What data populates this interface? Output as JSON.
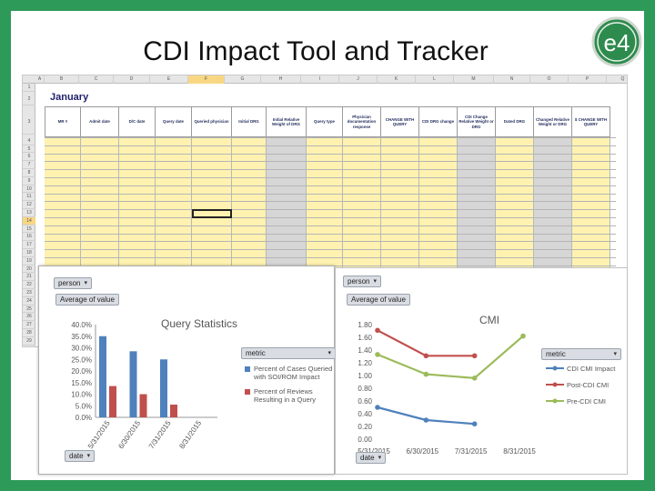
{
  "slide": {
    "title": "CDI Impact Tool and Tracker",
    "logo_text": "e4",
    "colors": {
      "frame": "#2e9a5a",
      "logo": "#2e8b4e",
      "band": "#fff2b0",
      "gray_col": "#d6d6d6",
      "selection": "#f8d783"
    }
  },
  "sheet": {
    "column_letters": [
      "A",
      "B",
      "C",
      "D",
      "E",
      "F",
      "G",
      "H",
      "I",
      "J",
      "K",
      "L",
      "M",
      "N",
      "O",
      "P",
      "Q"
    ],
    "selected_column": "F",
    "month": "January",
    "headers": [
      "MR #",
      "Admit date",
      "D/C date",
      "Query date",
      "Queried physician",
      "Initial DRG",
      "Initial Relative Weight of DRG",
      "Query type",
      "Physician documentation response",
      "CHANGE WITH QUERY",
      "CDI DRG change",
      "CDI Change Relative Weight or DRG",
      "Dated DRG",
      "Changed Relative Weight or DRG",
      "$ CHANGE WITH QUERY"
    ],
    "row_numbers": [
      "1",
      "2",
      "3",
      "4",
      "5",
      "6",
      "7",
      "8",
      "9",
      "10",
      "11",
      "12",
      "13",
      "14",
      "15",
      "16",
      "17",
      "18",
      "19",
      "20",
      "21",
      "22",
      "23",
      "24",
      "25",
      "26",
      "27",
      "28",
      "29"
    ],
    "selected_row": "14"
  },
  "pivot1": {
    "filter_label": "person",
    "value_label": "Average of value",
    "legend_field": "metric",
    "axis_field": "date",
    "icon": "filter-dropdown-icon"
  },
  "pivot2": {
    "filter_label": "person",
    "value_label": "Average of value",
    "legend_field": "metric",
    "axis_field": "date",
    "icon": "filter-dropdown-icon"
  },
  "chart_data": [
    {
      "type": "bar",
      "title": "Query Statistics",
      "categories": [
        "5/31/2015",
        "6/30/2015",
        "7/31/2015",
        "8/31/2015"
      ],
      "ylim": [
        0,
        40
      ],
      "yticks": [
        "0.0%",
        "5.0%",
        "10.0%",
        "15.0%",
        "20.0%",
        "25.0%",
        "30.0%",
        "35.0%",
        "40.0%"
      ],
      "legend_placement": "right",
      "series": [
        {
          "name": "Percent of Cases Queried with SOI/ROM Impact",
          "values": [
            35,
            28.5,
            25,
            null
          ],
          "color": "#4f81bd"
        },
        {
          "name": "Percent of Reviews Resulting in a Query",
          "values": [
            13.5,
            10,
            5.5,
            null
          ],
          "color": "#c0504d"
        }
      ]
    },
    {
      "type": "line",
      "title": "CMI",
      "categories": [
        "5/31/2015",
        "6/30/2015",
        "7/31/2015",
        "8/31/2015"
      ],
      "ylim": [
        0,
        1.8
      ],
      "yticks": [
        "0.00",
        "0.20",
        "0.40",
        "0.60",
        "0.80",
        "1.00",
        "1.20",
        "1.40",
        "1.60",
        "1.80"
      ],
      "legend_placement": "right",
      "series": [
        {
          "name": "CDI CMI Impact",
          "values": [
            0.5,
            0.3,
            0.24,
            null
          ],
          "color": "#4f81bd"
        },
        {
          "name": "Post-CDI CMI",
          "values": [
            1.71,
            1.31,
            1.31,
            null
          ],
          "color": "#c0504d"
        },
        {
          "name": "Pre-CDI CMI",
          "values": [
            1.33,
            1.02,
            0.96,
            1.62
          ],
          "color": "#9bbb59"
        }
      ]
    }
  ]
}
